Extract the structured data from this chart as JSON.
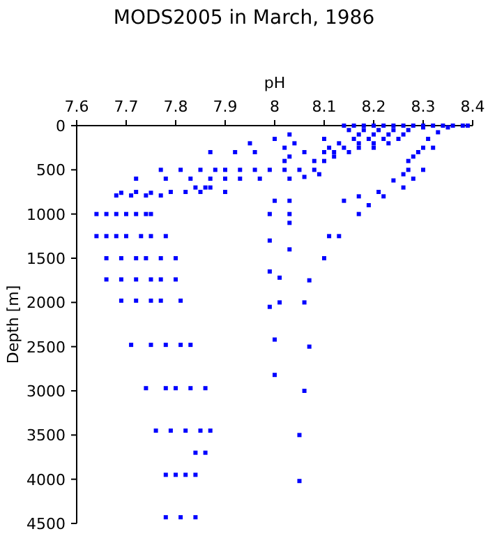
{
  "chart_data": {
    "type": "scatter",
    "title": "MODS2005 in March, 1986",
    "xlabel": "pH",
    "ylabel": "Depth [m]",
    "xlim": [
      7.6,
      8.4
    ],
    "xticks": [
      7.6,
      7.7,
      7.8,
      7.9,
      8,
      8.1,
      8.2,
      8.3,
      8.4
    ],
    "ylim": [
      4500,
      0
    ],
    "yticks": [
      0,
      500,
      1000,
      1500,
      2000,
      2500,
      3000,
      3500,
      4000,
      4500
    ],
    "grid": false,
    "marker": "square",
    "series": [
      {
        "color": "#0000ff",
        "x": [
          8.14,
          8.16,
          8.18,
          8.2,
          8.22,
          8.24,
          8.26,
          8.28,
          8.3,
          8.32,
          8.34,
          8.36,
          8.38,
          8.39,
          8.15,
          8.18,
          8.21,
          8.24,
          8.27,
          8.3,
          8.35,
          8.17,
          8.2,
          8.23,
          8.26,
          8.33,
          8.31,
          8.16,
          8.19,
          8.22,
          8.25,
          8.13,
          8.17,
          8.2,
          8.23,
          8.11,
          8.14,
          8.17,
          8.2,
          8.1,
          8.12,
          8.15,
          8.3,
          8.29,
          8.28,
          8.32,
          8.27,
          8.3,
          8.27,
          8.26,
          8.28,
          8.24,
          8.26,
          8.21,
          8.22,
          8.17,
          8.19,
          8.14,
          8.17,
          8.03,
          8.0,
          8.04,
          8.02,
          8.1,
          8.06,
          7.95,
          7.92,
          7.96,
          7.87,
          8.03,
          8.02,
          8.08,
          8.1,
          8.12,
          7.77,
          7.81,
          7.85,
          7.88,
          7.9,
          7.93,
          7.96,
          7.99,
          8.02,
          8.05,
          8.08,
          8.09,
          8.06,
          7.72,
          7.78,
          7.83,
          7.87,
          7.9,
          7.93,
          7.97,
          8.03,
          7.84,
          7.86,
          7.87,
          7.69,
          7.72,
          7.75,
          7.79,
          7.82,
          7.85,
          7.9,
          7.68,
          7.71,
          7.74,
          7.77,
          8.0,
          8.03,
          7.99,
          8.03,
          8.03,
          7.99,
          8.03,
          7.99,
          8.01,
          7.99,
          8.01,
          8.06,
          8.07,
          8.1,
          8.11,
          8.13,
          8.0,
          8.07,
          8.0,
          8.06,
          8.05,
          8.05,
          7.64,
          7.66,
          7.68,
          7.7,
          7.72,
          7.74,
          7.75,
          7.64,
          7.66,
          7.68,
          7.7,
          7.73,
          7.75,
          7.78,
          7.66,
          7.69,
          7.72,
          7.74,
          7.77,
          7.8,
          7.66,
          7.69,
          7.72,
          7.75,
          7.77,
          7.8,
          7.69,
          7.72,
          7.75,
          7.77,
          7.81,
          7.71,
          7.75,
          7.78,
          7.81,
          7.83,
          7.74,
          7.78,
          7.8,
          7.83,
          7.86,
          7.76,
          7.79,
          7.82,
          7.85,
          7.87,
          7.84,
          7.86,
          7.78,
          7.8,
          7.82,
          7.84,
          7.78,
          7.81,
          7.84
        ],
        "values": [
          0,
          0,
          0,
          0,
          0,
          0,
          0,
          0,
          0,
          0,
          0,
          0,
          0,
          0,
          50,
          50,
          50,
          50,
          50,
          20,
          20,
          100,
          100,
          100,
          100,
          75,
          150,
          150,
          150,
          150,
          150,
          200,
          200,
          200,
          200,
          250,
          250,
          250,
          250,
          300,
          300,
          300,
          250,
          300,
          350,
          250,
          400,
          500,
          500,
          550,
          600,
          620,
          700,
          750,
          800,
          800,
          900,
          850,
          1000,
          100,
          150,
          200,
          250,
          150,
          300,
          200,
          300,
          300,
          300,
          350,
          400,
          400,
          400,
          350,
          500,
          500,
          500,
          500,
          500,
          500,
          500,
          500,
          500,
          500,
          500,
          550,
          580,
          600,
          600,
          600,
          600,
          600,
          600,
          600,
          600,
          700,
          700,
          700,
          760,
          750,
          760,
          750,
          750,
          750,
          750,
          790,
          790,
          790,
          790,
          850,
          850,
          1000,
          1000,
          1100,
          1300,
          1400,
          1650,
          1720,
          2050,
          2000,
          2000,
          1750,
          1500,
          1250,
          1250,
          2420,
          2500,
          2820,
          3000,
          3500,
          4020,
          1000,
          1000,
          1000,
          1000,
          1000,
          1000,
          1000,
          1250,
          1250,
          1250,
          1250,
          1250,
          1250,
          1250,
          1500,
          1500,
          1500,
          1500,
          1500,
          1500,
          1740,
          1740,
          1740,
          1740,
          1740,
          1740,
          1980,
          1980,
          1980,
          1980,
          1980,
          2480,
          2480,
          2480,
          2480,
          2480,
          2970,
          2970,
          2970,
          2970,
          2970,
          3450,
          3450,
          3450,
          3450,
          3450,
          3700,
          3700,
          3950,
          3950,
          3950,
          3950,
          4430,
          4430,
          4430
        ]
      }
    ]
  }
}
